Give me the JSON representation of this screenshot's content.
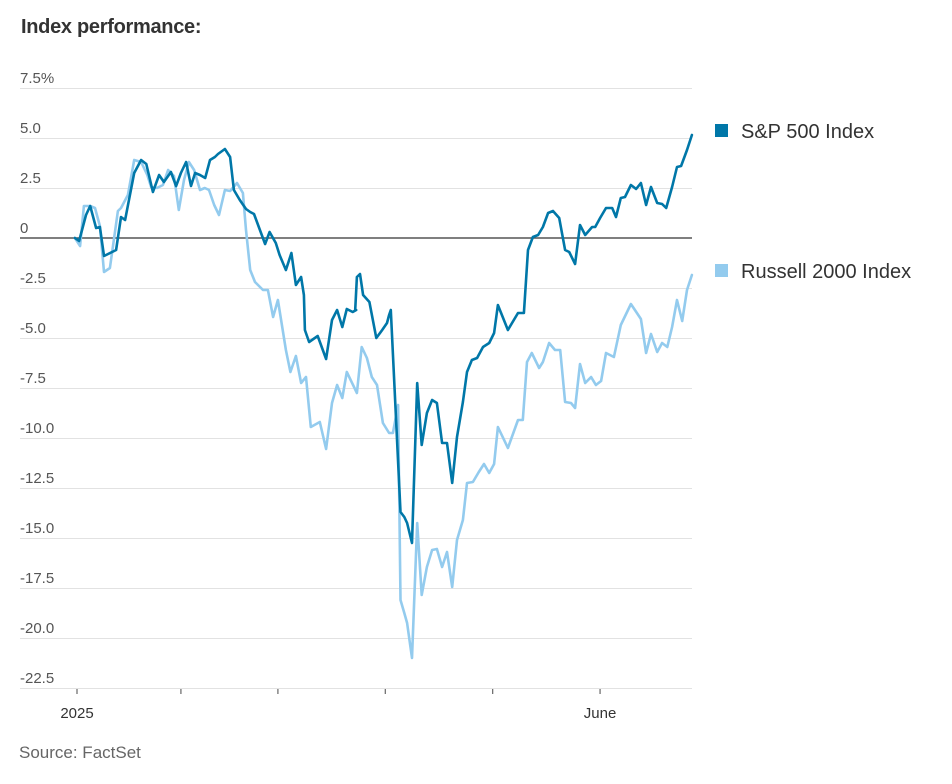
{
  "page": {
    "title": "Index performance:",
    "source": "Source: FactSet"
  },
  "chart_data": {
    "type": "line",
    "title": "Index performance:",
    "xlabel": "",
    "ylabel": "",
    "x_unit": "days since Jan 1, 2025",
    "xlim": [
      0,
      177.5
    ],
    "ylim": [
      -22.5,
      7.5
    ],
    "grid": true,
    "zero_line": true,
    "y_ticks": [
      7.5,
      5.0,
      2.5,
      0,
      -2.5,
      -5.0,
      -7.5,
      -10.0,
      -12.5,
      -15.0,
      -17.5,
      -20.0,
      -22.5
    ],
    "y_tick_labels": [
      "7.5%",
      "5.0",
      "2.5",
      "0",
      "-2.5",
      "-5.0",
      "-7.5",
      "-10.0",
      "-12.5",
      "-15.0",
      "-17.5",
      "-20.0",
      "-22.5"
    ],
    "x_ticks": [
      0,
      30,
      58,
      89,
      120,
      151
    ],
    "x_tick_labels": [
      "2025",
      "",
      "",
      "",
      "",
      "June"
    ],
    "legend_placement": "right",
    "colors": {
      "sp500": "#0077a8",
      "russell": "#93cbee",
      "zero_line": "#555555",
      "grid": "#e2e2e2"
    },
    "series": [
      {
        "name": "S&P 500 Index",
        "key": "sp500",
        "points": [
          [
            -0.6,
            0.0
          ],
          [
            0.6,
            -0.15
          ],
          [
            2.6,
            1.15
          ],
          [
            3.8,
            1.6
          ],
          [
            5.5,
            0.5
          ],
          [
            6.6,
            0.55
          ],
          [
            7.8,
            -0.9
          ],
          [
            10.7,
            -0.65
          ],
          [
            11.3,
            -0.6
          ],
          [
            12.7,
            1.05
          ],
          [
            13.9,
            0.9
          ],
          [
            16.5,
            3.25
          ],
          [
            18.5,
            3.9
          ],
          [
            20.0,
            3.7
          ],
          [
            21.9,
            2.3
          ],
          [
            23.7,
            3.15
          ],
          [
            25.1,
            2.8
          ],
          [
            27.1,
            3.3
          ],
          [
            28.6,
            2.6
          ],
          [
            30.0,
            3.25
          ],
          [
            31.5,
            3.8
          ],
          [
            32.9,
            2.6
          ],
          [
            34.1,
            3.25
          ],
          [
            35.5,
            3.15
          ],
          [
            37.0,
            3.0
          ],
          [
            38.4,
            3.9
          ],
          [
            39.8,
            4.05
          ],
          [
            40.7,
            4.2
          ],
          [
            42.7,
            4.45
          ],
          [
            44.2,
            4.05
          ],
          [
            45.3,
            2.4
          ],
          [
            47.0,
            1.9
          ],
          [
            48.8,
            1.45
          ],
          [
            50.0,
            1.3
          ],
          [
            51.1,
            1.2
          ],
          [
            54.3,
            -0.3
          ],
          [
            55.6,
            0.3
          ],
          [
            57.4,
            -0.25
          ],
          [
            58.5,
            -0.85
          ],
          [
            60.3,
            -1.6
          ],
          [
            61.9,
            -0.75
          ],
          [
            63.2,
            -2.35
          ],
          [
            64.7,
            -1.95
          ],
          [
            65.5,
            -2.85
          ],
          [
            65.8,
            -4.6
          ],
          [
            67.0,
            -5.2
          ],
          [
            69.5,
            -4.9
          ],
          [
            71.9,
            -6.05
          ],
          [
            71.9,
            -6.05
          ],
          [
            73.6,
            -4.1
          ],
          [
            73.6,
            -4.1
          ],
          [
            75.1,
            -3.6
          ],
          [
            76.6,
            -4.45
          ],
          [
            77.9,
            -3.55
          ],
          [
            79.6,
            -3.7
          ],
          [
            80.6,
            -3.6
          ],
          [
            80.3,
            -3.6
          ],
          [
            80.8,
            -1.95
          ],
          [
            81.7,
            -1.8
          ],
          [
            82.6,
            -2.85
          ],
          [
            84.4,
            -3.2
          ],
          [
            86.4,
            -5.0
          ],
          [
            88.1,
            -4.6
          ],
          [
            89.5,
            -4.25
          ],
          [
            90.1,
            -3.85
          ],
          [
            90.6,
            -3.6
          ],
          [
            93.4,
            -13.7
          ],
          [
            94.5,
            -13.95
          ],
          [
            95.3,
            -14.25
          ],
          [
            96.7,
            -15.25
          ],
          [
            98.2,
            -7.25
          ],
          [
            99.5,
            -10.35
          ],
          [
            101.0,
            -8.75
          ],
          [
            102.5,
            -8.1
          ],
          [
            103.9,
            -8.25
          ],
          [
            105.4,
            -10.25
          ],
          [
            106.8,
            -10.25
          ],
          [
            108.3,
            -12.25
          ],
          [
            109.7,
            -9.95
          ],
          [
            111.4,
            -8.2
          ],
          [
            112.6,
            -6.7
          ],
          [
            114.0,
            -6.1
          ],
          [
            115.5,
            -6.0
          ],
          [
            117.2,
            -5.45
          ],
          [
            119.0,
            -5.25
          ],
          [
            120.4,
            -4.75
          ],
          [
            121.5,
            -3.35
          ],
          [
            124.4,
            -4.6
          ],
          [
            127.3,
            -3.75
          ],
          [
            129.0,
            -3.75
          ],
          [
            130.2,
            -0.6
          ],
          [
            131.6,
            0.05
          ],
          [
            133.1,
            0.15
          ],
          [
            134.5,
            0.55
          ],
          [
            136.0,
            1.25
          ],
          [
            137.4,
            1.35
          ],
          [
            139.2,
            1.0
          ],
          [
            140.9,
            -0.6
          ],
          [
            142.1,
            -0.7
          ],
          [
            143.8,
            -1.3
          ],
          [
            145.2,
            0.65
          ],
          [
            146.7,
            0.15
          ],
          [
            148.7,
            0.55
          ],
          [
            149.6,
            0.55
          ],
          [
            151.0,
            1.0
          ],
          [
            152.7,
            1.5
          ],
          [
            154.5,
            1.5
          ],
          [
            155.6,
            1.05
          ],
          [
            157.0,
            2.0
          ],
          [
            158.2,
            2.05
          ],
          [
            159.9,
            2.65
          ],
          [
            161.4,
            2.45
          ],
          [
            162.8,
            2.75
          ],
          [
            164.3,
            1.65
          ],
          [
            165.7,
            2.55
          ],
          [
            167.5,
            1.75
          ],
          [
            168.9,
            1.7
          ],
          [
            170.1,
            1.5
          ],
          [
            171.8,
            2.55
          ],
          [
            173.2,
            3.55
          ],
          [
            174.4,
            3.6
          ],
          [
            176.1,
            4.4
          ],
          [
            177.5,
            5.15
          ]
        ]
      },
      {
        "name": "Russell 2000 Index",
        "key": "russell",
        "points": [
          [
            -0.6,
            0.0
          ],
          [
            0.9,
            -0.4
          ],
          [
            2.0,
            1.6
          ],
          [
            3.8,
            1.6
          ],
          [
            5.2,
            1.5
          ],
          [
            6.6,
            0.6
          ],
          [
            7.8,
            -1.7
          ],
          [
            9.5,
            -1.5
          ],
          [
            11.8,
            1.35
          ],
          [
            12.7,
            1.5
          ],
          [
            14.7,
            2.15
          ],
          [
            16.5,
            3.9
          ],
          [
            18.5,
            3.8
          ],
          [
            20.3,
            3.15
          ],
          [
            21.4,
            2.55
          ],
          [
            23.1,
            2.5
          ],
          [
            24.8,
            2.65
          ],
          [
            26.3,
            3.4
          ],
          [
            28.0,
            3.1
          ],
          [
            29.4,
            1.4
          ],
          [
            30.9,
            2.9
          ],
          [
            32.3,
            3.8
          ],
          [
            33.8,
            3.4
          ],
          [
            35.5,
            2.4
          ],
          [
            36.9,
            2.5
          ],
          [
            38.1,
            2.4
          ],
          [
            39.6,
            1.65
          ],
          [
            41.0,
            1.15
          ],
          [
            42.7,
            2.4
          ],
          [
            44.2,
            2.35
          ],
          [
            46.2,
            2.75
          ],
          [
            47.9,
            2.25
          ],
          [
            48.8,
            0.4
          ],
          [
            50.0,
            -1.6
          ],
          [
            51.4,
            -2.2
          ],
          [
            53.7,
            -2.6
          ],
          [
            55.1,
            -2.6
          ],
          [
            56.6,
            -3.95
          ],
          [
            58.0,
            -3.1
          ],
          [
            60.3,
            -5.6
          ],
          [
            61.6,
            -6.7
          ],
          [
            63.2,
            -5.9
          ],
          [
            64.7,
            -7.25
          ],
          [
            66.1,
            -6.95
          ],
          [
            67.5,
            -9.45
          ],
          [
            70.1,
            -9.2
          ],
          [
            71.9,
            -10.55
          ],
          [
            71.9,
            -10.55
          ],
          [
            73.6,
            -8.25
          ],
          [
            73.6,
            -8.25
          ],
          [
            75.1,
            -7.35
          ],
          [
            76.6,
            -8.0
          ],
          [
            77.9,
            -6.7
          ],
          [
            80.8,
            -7.75
          ],
          [
            82.2,
            -5.45
          ],
          [
            83.7,
            -6.0
          ],
          [
            85.1,
            -6.95
          ],
          [
            86.6,
            -7.35
          ],
          [
            88.3,
            -9.25
          ],
          [
            90.1,
            -9.75
          ],
          [
            91.2,
            -9.75
          ],
          [
            92.7,
            -8.35
          ],
          [
            93.4,
            -18.1
          ],
          [
            94.5,
            -18.75
          ],
          [
            95.3,
            -19.25
          ],
          [
            96.7,
            -21.0
          ],
          [
            98.2,
            -14.25
          ],
          [
            99.5,
            -17.85
          ],
          [
            101.0,
            -16.45
          ],
          [
            102.5,
            -15.6
          ],
          [
            103.9,
            -15.55
          ],
          [
            105.4,
            -16.45
          ],
          [
            106.8,
            -15.7
          ],
          [
            108.3,
            -17.45
          ],
          [
            109.7,
            -15.1
          ],
          [
            111.4,
            -14.1
          ],
          [
            112.6,
            -12.25
          ],
          [
            114.3,
            -12.2
          ],
          [
            116.0,
            -11.7
          ],
          [
            117.5,
            -11.3
          ],
          [
            119.0,
            -11.75
          ],
          [
            120.4,
            -11.3
          ],
          [
            121.5,
            -9.45
          ],
          [
            124.4,
            -10.5
          ],
          [
            127.3,
            -9.1
          ],
          [
            128.7,
            -9.1
          ],
          [
            129.9,
            -6.2
          ],
          [
            131.3,
            -5.75
          ],
          [
            133.4,
            -6.5
          ],
          [
            134.5,
            -6.2
          ],
          [
            136.3,
            -5.25
          ],
          [
            138.0,
            -5.6
          ],
          [
            139.5,
            -5.6
          ],
          [
            140.9,
            -8.2
          ],
          [
            142.6,
            -8.25
          ],
          [
            143.8,
            -8.5
          ],
          [
            145.2,
            -6.3
          ],
          [
            146.7,
            -7.25
          ],
          [
            148.4,
            -6.95
          ],
          [
            149.8,
            -7.35
          ],
          [
            151.3,
            -7.15
          ],
          [
            152.7,
            -5.75
          ],
          [
            155.0,
            -5.95
          ],
          [
            157.0,
            -4.35
          ],
          [
            159.9,
            -3.3
          ],
          [
            162.8,
            -4.05
          ],
          [
            164.3,
            -5.75
          ],
          [
            165.7,
            -4.8
          ],
          [
            167.5,
            -5.7
          ],
          [
            168.9,
            -5.25
          ],
          [
            170.4,
            -5.45
          ],
          [
            171.8,
            -4.45
          ],
          [
            173.2,
            -3.1
          ],
          [
            174.7,
            -4.15
          ],
          [
            176.1,
            -2.6
          ],
          [
            177.5,
            -1.85
          ]
        ]
      }
    ]
  },
  "legend": {
    "items": [
      {
        "label": "S&P 500 Index",
        "color": "#0077a8"
      },
      {
        "label": "Russell 2000 Index",
        "color": "#93cbee"
      }
    ]
  }
}
